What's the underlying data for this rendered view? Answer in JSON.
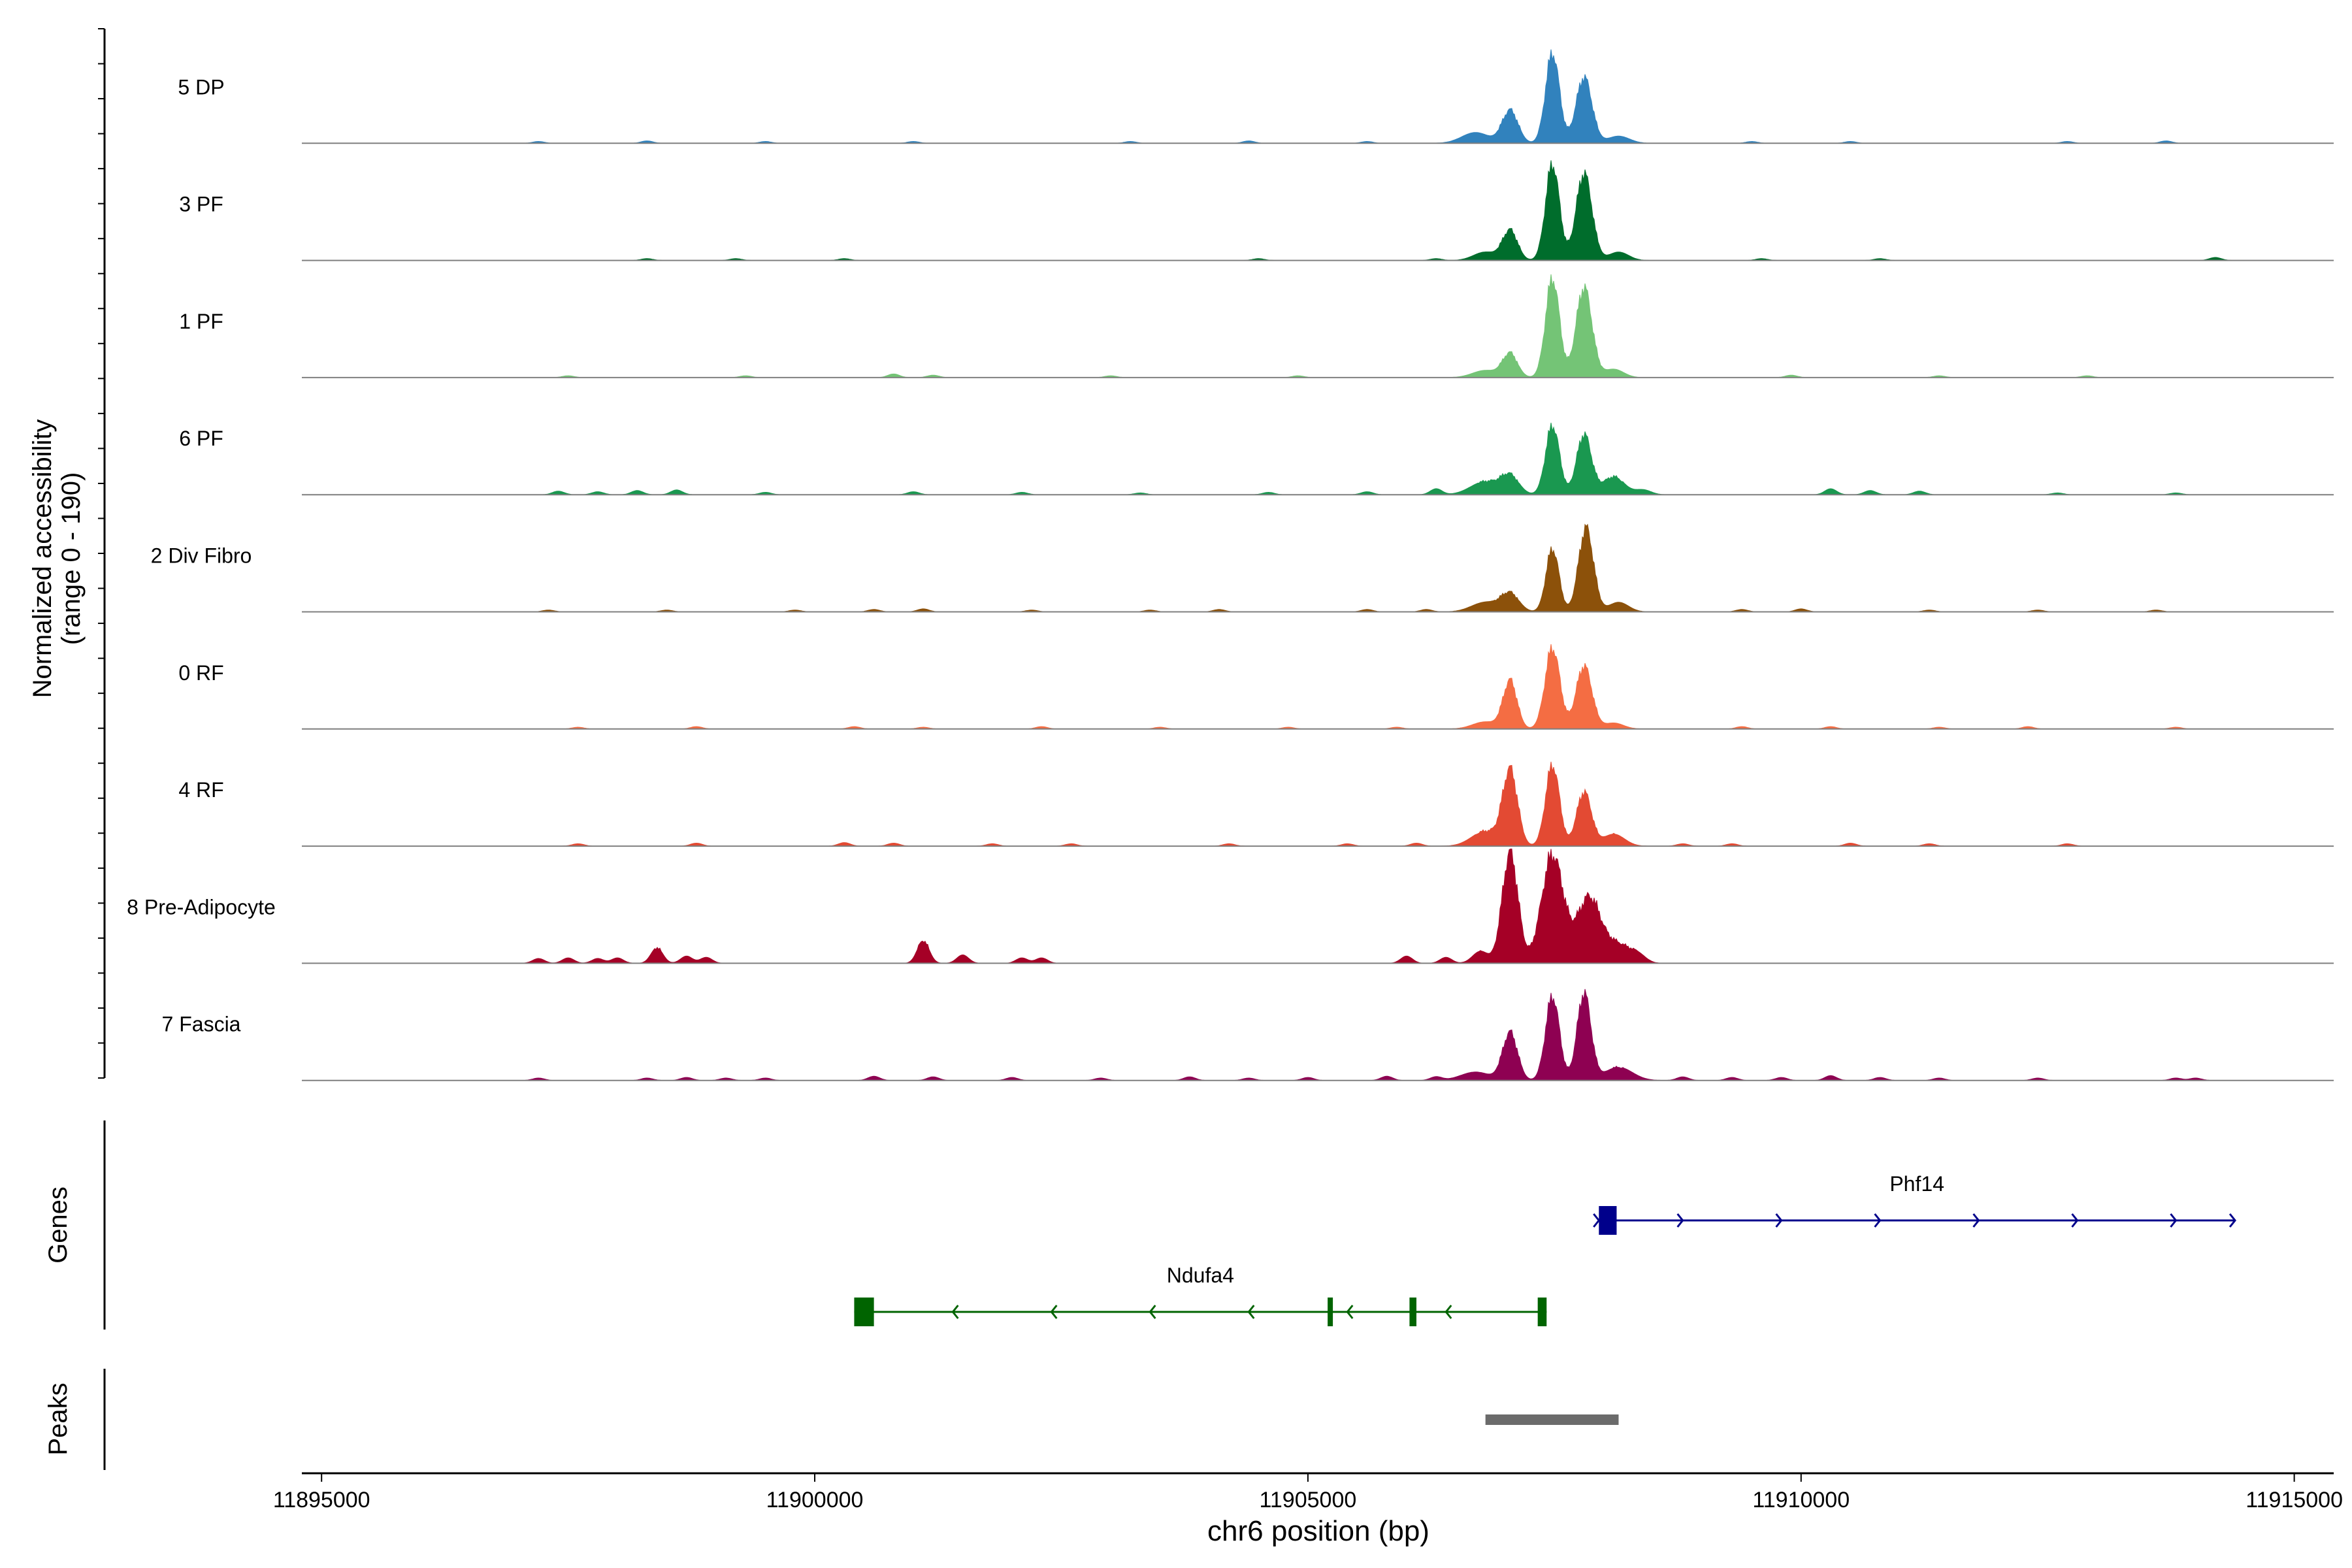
{
  "chart_data": {
    "type": "area",
    "title": "",
    "ylabel_line1": "Normalized accessibility",
    "ylabel_line2": "(range 0 - 190)",
    "xlabel": "chr6 position (bp)",
    "xlim": [
      11894800,
      11915400
    ],
    "ylim": [
      0,
      190
    ],
    "x_ticks": [
      11895000,
      11900000,
      11905000,
      11910000,
      11915000
    ],
    "x_tick_labels": [
      "11895000",
      "11900000",
      "11905000",
      "11910000",
      "11915000"
    ],
    "tracks": [
      {
        "name": "5 DP",
        "color": "#3182bd",
        "peaks": [
          [
            11907050,
            55,
            80
          ],
          [
            11907480,
            150,
            70
          ],
          [
            11907800,
            110,
            80
          ]
        ],
        "shoulders": [
          [
            11906700,
            18,
            140
          ],
          [
            11908150,
            12,
            110
          ]
        ],
        "noise": [
          [
            11897200,
            3
          ],
          [
            11898300,
            4
          ],
          [
            11899500,
            3
          ],
          [
            11901000,
            3
          ],
          [
            11903200,
            3
          ],
          [
            11904400,
            4
          ],
          [
            11905600,
            3
          ],
          [
            11909500,
            3
          ],
          [
            11910500,
            3
          ],
          [
            11912700,
            3
          ],
          [
            11913700,
            4
          ]
        ]
      },
      {
        "name": "3 PF",
        "color": "#006d2c",
        "peaks": [
          [
            11907050,
            50,
            75
          ],
          [
            11907480,
            160,
            70
          ],
          [
            11907800,
            145,
            80
          ]
        ],
        "shoulders": [
          [
            11906800,
            14,
            120
          ],
          [
            11908150,
            14,
            100
          ]
        ],
        "noise": [
          [
            11898300,
            3
          ],
          [
            11899200,
            3
          ],
          [
            11900300,
            3
          ],
          [
            11904500,
            3
          ],
          [
            11906300,
            3
          ],
          [
            11909600,
            3
          ],
          [
            11910800,
            3
          ],
          [
            11914200,
            5
          ]
        ]
      },
      {
        "name": "1 PF",
        "color": "#74c476",
        "peaks": [
          [
            11907050,
            40,
            75
          ],
          [
            11907480,
            165,
            70
          ],
          [
            11907800,
            150,
            80
          ]
        ],
        "shoulders": [
          [
            11906800,
            12,
            130
          ],
          [
            11908100,
            14,
            100
          ]
        ],
        "noise": [
          [
            11897500,
            3
          ],
          [
            11899300,
            3
          ],
          [
            11900800,
            6
          ],
          [
            11901200,
            4
          ],
          [
            11903000,
            3
          ],
          [
            11904900,
            3
          ],
          [
            11909900,
            4
          ],
          [
            11911400,
            3
          ],
          [
            11912900,
            3
          ]
        ]
      },
      {
        "name": "6 PF",
        "color": "#1a9850",
        "peaks": [
          [
            11907050,
            30,
            90
          ],
          [
            11907480,
            115,
            70
          ],
          [
            11907800,
            100,
            75
          ]
        ],
        "shoulders": [
          [
            11906800,
            22,
            150
          ],
          [
            11908100,
            30,
            110
          ],
          [
            11908400,
            8,
            80
          ]
        ],
        "noise": [
          [
            11897400,
            6
          ],
          [
            11897800,
            5
          ],
          [
            11898200,
            7
          ],
          [
            11898600,
            8
          ],
          [
            11899500,
            4
          ],
          [
            11901000,
            5
          ],
          [
            11902100,
            4
          ],
          [
            11903300,
            3
          ],
          [
            11904600,
            4
          ],
          [
            11905600,
            5
          ],
          [
            11906300,
            10
          ],
          [
            11910300,
            10
          ],
          [
            11910700,
            7
          ],
          [
            11911200,
            6
          ],
          [
            11912600,
            3
          ],
          [
            11913800,
            3
          ]
        ]
      },
      {
        "name": "2 Div Fibro",
        "color": "#8c510a",
        "peaks": [
          [
            11907050,
            30,
            90
          ],
          [
            11907480,
            105,
            65
          ],
          [
            11907820,
            140,
            75
          ]
        ],
        "shoulders": [
          [
            11906800,
            16,
            140
          ],
          [
            11908150,
            16,
            100
          ]
        ],
        "noise": [
          [
            11897300,
            3
          ],
          [
            11898500,
            3
          ],
          [
            11899800,
            3
          ],
          [
            11900600,
            4
          ],
          [
            11901100,
            5
          ],
          [
            11902200,
            3
          ],
          [
            11903400,
            3
          ],
          [
            11904100,
            4
          ],
          [
            11905600,
            4
          ],
          [
            11906200,
            4
          ],
          [
            11909400,
            4
          ],
          [
            11910000,
            5
          ],
          [
            11911300,
            3
          ],
          [
            11912400,
            3
          ],
          [
            11913600,
            3
          ]
        ]
      },
      {
        "name": "0 RF",
        "color": "#f46d43",
        "peaks": [
          [
            11907050,
            80,
            70
          ],
          [
            11907480,
            135,
            75
          ],
          [
            11907800,
            105,
            80
          ]
        ],
        "shoulders": [
          [
            11906800,
            12,
            130
          ],
          [
            11908100,
            10,
            100
          ]
        ],
        "noise": [
          [
            11897600,
            3
          ],
          [
            11898800,
            4
          ],
          [
            11900400,
            4
          ],
          [
            11901100,
            3
          ],
          [
            11902300,
            4
          ],
          [
            11903500,
            3
          ],
          [
            11904800,
            3
          ],
          [
            11905900,
            3
          ],
          [
            11909400,
            4
          ],
          [
            11910300,
            4
          ],
          [
            11911400,
            3
          ],
          [
            11912300,
            4
          ],
          [
            11913800,
            3
          ]
        ]
      },
      {
        "name": "4 RF",
        "color": "#e34a33",
        "peaks": [
          [
            11907050,
            125,
            75
          ],
          [
            11907480,
            135,
            70
          ],
          [
            11907800,
            90,
            75
          ]
        ],
        "shoulders": [
          [
            11906800,
            25,
            140
          ],
          [
            11908100,
            20,
            110
          ]
        ],
        "noise": [
          [
            11897600,
            4
          ],
          [
            11898800,
            5
          ],
          [
            11900300,
            6
          ],
          [
            11900800,
            5
          ],
          [
            11901800,
            4
          ],
          [
            11902600,
            4
          ],
          [
            11904200,
            4
          ],
          [
            11905400,
            4
          ],
          [
            11906100,
            5
          ],
          [
            11908800,
            4
          ],
          [
            11909300,
            4
          ],
          [
            11910500,
            5
          ],
          [
            11911300,
            4
          ],
          [
            11912700,
            4
          ]
        ]
      },
      {
        "name": "8 Pre-Adipocyte",
        "color": "#a50026",
        "peaks": [
          [
            11907050,
            185,
            80
          ],
          [
            11907480,
            180,
            110
          ],
          [
            11907850,
            110,
            120
          ]
        ],
        "shoulders": [
          [
            11906750,
            20,
            80
          ],
          [
            11908150,
            30,
            120
          ],
          [
            11908350,
            12,
            80
          ]
        ],
        "noise": [
          [
            11897200,
            8
          ],
          [
            11897500,
            9
          ],
          [
            11897800,
            8
          ],
          [
            11898000,
            9
          ],
          [
            11898400,
            26
          ],
          [
            11898700,
            12
          ],
          [
            11898900,
            10
          ],
          [
            11901100,
            38
          ],
          [
            11901500,
            14
          ],
          [
            11902100,
            9
          ],
          [
            11902300,
            9
          ],
          [
            11906000,
            12
          ],
          [
            11906400,
            10
          ]
        ]
      },
      {
        "name": "7 Fascia",
        "color": "#8e0152",
        "peaks": [
          [
            11907050,
            80,
            75
          ],
          [
            11907480,
            140,
            70
          ],
          [
            11907800,
            145,
            70
          ]
        ],
        "shoulders": [
          [
            11906700,
            14,
            150
          ],
          [
            11908150,
            22,
            140
          ]
        ],
        "noise": [
          [
            11897200,
            4
          ],
          [
            11898300,
            4
          ],
          [
            11898700,
            5
          ],
          [
            11899100,
            4
          ],
          [
            11899500,
            4
          ],
          [
            11900600,
            7
          ],
          [
            11901200,
            6
          ],
          [
            11902000,
            5
          ],
          [
            11902900,
            4
          ],
          [
            11903800,
            6
          ],
          [
            11904400,
            4
          ],
          [
            11905000,
            5
          ],
          [
            11905800,
            7
          ],
          [
            11906300,
            6
          ],
          [
            11908800,
            6
          ],
          [
            11909300,
            5
          ],
          [
            11909800,
            5
          ],
          [
            11910300,
            8
          ],
          [
            11910800,
            5
          ],
          [
            11911400,
            4
          ],
          [
            11912400,
            4
          ],
          [
            11913800,
            4
          ],
          [
            11914000,
            4
          ]
        ]
      }
    ],
    "genes_label": "Genes",
    "genes": [
      {
        "name": "Phf14",
        "strand": "+",
        "color": "#00008b",
        "start": 11907950,
        "end": 11914400,
        "exons": [
          [
            11907950,
            11908130
          ]
        ],
        "arrows": [
          11907950,
          11908800,
          11909800,
          11910800,
          11911800,
          11912800,
          11913800,
          11914400
        ]
      },
      {
        "name": "Ndufa4",
        "strand": "-",
        "color": "#006400",
        "start": 11900400,
        "end": 11907420,
        "exons": [
          [
            11900400,
            11900600
          ],
          [
            11905200,
            11905250
          ],
          [
            11906030,
            11906100
          ],
          [
            11907330,
            11907420
          ]
        ],
        "arrows": [
          11901400,
          11902400,
          11903400,
          11904400,
          11905400,
          11906400
        ]
      }
    ],
    "peaks_label": "Peaks",
    "peak_regions": [
      {
        "start": 11906800,
        "end": 11908150,
        "color": "#6b6b6b"
      }
    ]
  }
}
